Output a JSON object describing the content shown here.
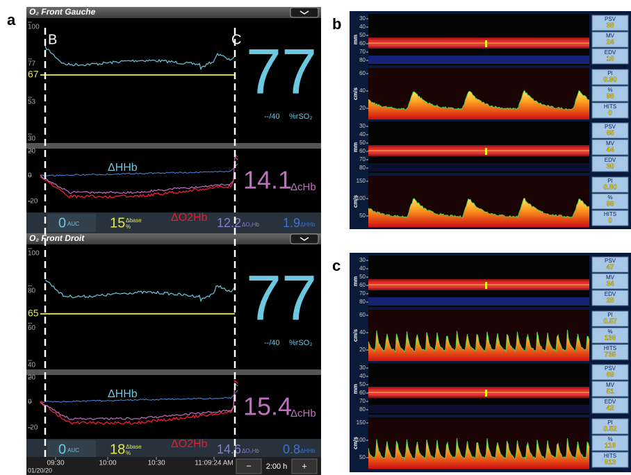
{
  "panels": {
    "a": {
      "label": "a",
      "markers": [
        "B",
        "C"
      ],
      "monitors": [
        {
          "title": "O₂ Front Gauche",
          "rso2_ticks": [
            "100",
            "77",
            "53",
            "30"
          ],
          "baseline": "67",
          "value": "77",
          "limit": "--/40",
          "unit": "%rSO₂",
          "hb_ticks": [
            "20",
            "0",
            "-20"
          ],
          "hhb_label": "ΔHHb",
          "o2hb_label": "ΔO2Hb",
          "chb_value": "14.1",
          "chb_unit": "ΔcHb",
          "auc": "0",
          "auc_unit": "AUC",
          "base": "15",
          "base_unit": "Δbase",
          "base_pct": "%",
          "o2hb_value": "12.2",
          "o2hb_unit": "ΔO₂Hb",
          "hhb_value": "1.9",
          "hhb_unit": "ΔHHb"
        },
        {
          "title": "O₂ Front Droit",
          "rso2_ticks": [
            "100",
            "80",
            "60",
            "40"
          ],
          "baseline": "65",
          "value": "77",
          "limit": "--/40",
          "unit": "%rSO₂",
          "hb_ticks": [
            "20",
            "0",
            "-20"
          ],
          "hhb_label": "ΔHHb",
          "o2hb_label": "ΔO2Hb",
          "chb_value": "15.4",
          "chb_unit": "ΔcHb",
          "auc": "0",
          "auc_unit": "AUC",
          "base": "18",
          "base_unit": "Δbase",
          "base_pct": "%",
          "o2hb_value": "14.6",
          "o2hb_unit": "ΔO₂Hb",
          "hhb_value": "0.8",
          "hhb_unit": "ΔHHb"
        }
      ],
      "timeline": {
        "times": [
          "09:30",
          "10:00",
          "10:30",
          "11:09:24 AM"
        ],
        "date": "01/20/20",
        "minus": "−",
        "span": "2:00 h",
        "plus": "+"
      }
    },
    "b": {
      "label": "b",
      "sets": [
        {
          "mm_unit": "mm",
          "mm_ticks": [
            "30",
            "40",
            "50",
            "60",
            "70",
            "80"
          ],
          "vel_unit": "cm/s",
          "vel_ticks": [
            "60",
            "40",
            "20"
          ],
          "params": [
            {
              "name": "PSV",
              "value": "38"
            },
            {
              "name": "MV",
              "value": "24"
            },
            {
              "name": "EDV",
              "value": "16"
            },
            {
              "name": "PI",
              "value": "0.90"
            },
            {
              "name": "%",
              "value": "98"
            },
            {
              "name": "HITS",
              "value": "0"
            }
          ]
        },
        {
          "mm_unit": "mm",
          "mm_ticks": [
            "30",
            "40",
            "50",
            "60",
            "70",
            "80"
          ],
          "vel_unit": "cm/s",
          "vel_ticks": [
            "150",
            "100",
            "50"
          ],
          "params": [
            {
              "name": "PSV",
              "value": "65"
            },
            {
              "name": "MV",
              "value": "44"
            },
            {
              "name": "EDV",
              "value": "30"
            },
            {
              "name": "PI",
              "value": "0.80"
            },
            {
              "name": "%",
              "value": "99"
            },
            {
              "name": "HITS",
              "value": "0"
            }
          ]
        }
      ]
    },
    "c": {
      "label": "c",
      "sets": [
        {
          "mm_unit": "mm",
          "mm_ticks": [
            "30",
            "40",
            "50",
            "60",
            "70",
            "80"
          ],
          "vel_unit": "cm/s",
          "vel_ticks": [
            "60",
            "40",
            "20"
          ],
          "params": [
            {
              "name": "PSV",
              "value": "47"
            },
            {
              "name": "MV",
              "value": "34"
            },
            {
              "name": "EDV",
              "value": "28"
            },
            {
              "name": "PI",
              "value": "0.57"
            },
            {
              "name": "%",
              "value": "136"
            },
            {
              "name": "HITS",
              "value": "735"
            }
          ]
        },
        {
          "mm_unit": "mm",
          "mm_ticks": [
            "30",
            "40",
            "50",
            "60",
            "70",
            "80"
          ],
          "vel_unit": "cm/s",
          "vel_ticks": [
            "150",
            "100",
            "50"
          ],
          "params": [
            {
              "name": "PSV",
              "value": "69"
            },
            {
              "name": "MV",
              "value": "51"
            },
            {
              "name": "EDV",
              "value": "42"
            },
            {
              "name": "PI",
              "value": "0.52"
            },
            {
              "name": "%",
              "value": "116"
            },
            {
              "name": "HITS",
              "value": "613"
            }
          ]
        }
      ]
    }
  }
}
